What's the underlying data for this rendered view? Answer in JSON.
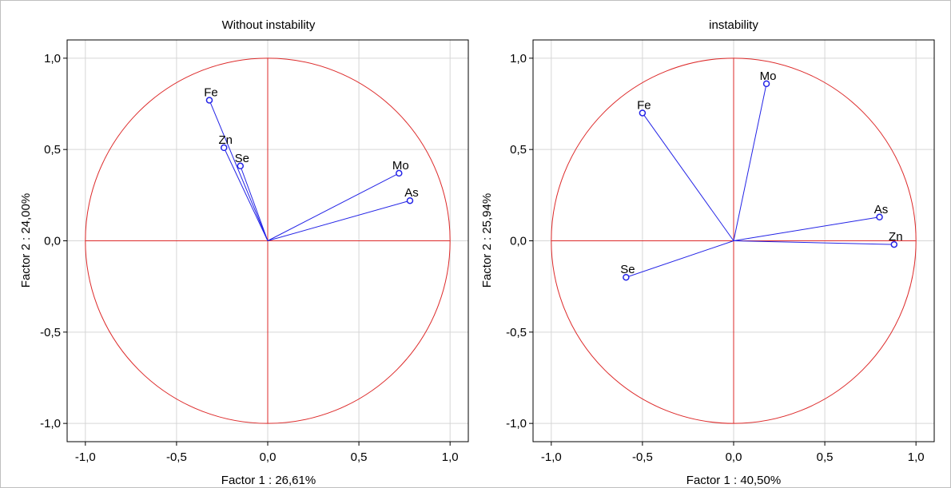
{
  "chart_data": [
    {
      "type": "scatter",
      "title": "Without instability",
      "xlabel": "Factor 1 : 26,61%",
      "ylabel": "Factor 2 : 24,00%",
      "xlim": [
        -1.1,
        1.1
      ],
      "ylim": [
        -1.1,
        1.1
      ],
      "xticks": [
        -1.0,
        -0.5,
        0.0,
        0.5,
        1.0
      ],
      "yticks": [
        -1.0,
        -0.5,
        0.0,
        0.5,
        1.0
      ],
      "xtick_labels": [
        "-1,0",
        "-0,5",
        "0,0",
        "0,5",
        "1,0"
      ],
      "ytick_labels": [
        "-1,0",
        "-0,5",
        "0,0",
        "0,5",
        "1,0"
      ],
      "grid": true,
      "unit_circle": true,
      "points": [
        {
          "label": "Fe",
          "x": -0.32,
          "y": 0.77
        },
        {
          "label": "Zn",
          "x": -0.24,
          "y": 0.51
        },
        {
          "label": "Se",
          "x": -0.15,
          "y": 0.41
        },
        {
          "label": "Mo",
          "x": 0.72,
          "y": 0.37
        },
        {
          "label": "As",
          "x": 0.78,
          "y": 0.22
        }
      ]
    },
    {
      "type": "scatter",
      "title": "instability",
      "xlabel": "Factor 1 : 40,50%",
      "ylabel": "Factor 2 : 25,94%",
      "xlim": [
        -1.1,
        1.1
      ],
      "ylim": [
        -1.1,
        1.1
      ],
      "xticks": [
        -1.0,
        -0.5,
        0.0,
        0.5,
        1.0
      ],
      "yticks": [
        -1.0,
        -0.5,
        0.0,
        0.5,
        1.0
      ],
      "xtick_labels": [
        "-1,0",
        "-0,5",
        "0,0",
        "0,5",
        "1,0"
      ],
      "ytick_labels": [
        "-1,0",
        "-0,5",
        "0,0",
        "0,5",
        "1,0"
      ],
      "grid": true,
      "unit_circle": true,
      "points": [
        {
          "label": "Mo",
          "x": 0.18,
          "y": 0.86
        },
        {
          "label": "Fe",
          "x": -0.5,
          "y": 0.7
        },
        {
          "label": "As",
          "x": 0.8,
          "y": 0.13
        },
        {
          "label": "Zn",
          "x": 0.88,
          "y": -0.02
        },
        {
          "label": "Se",
          "x": -0.59,
          "y": -0.2
        }
      ]
    }
  ],
  "colors": {
    "axis_line": "#dd2a2a",
    "circle": "#dd2a2a",
    "vector": "#2323e6",
    "marker": "#2323e6",
    "grid": "#d6d6d6",
    "frame": "#000000"
  }
}
